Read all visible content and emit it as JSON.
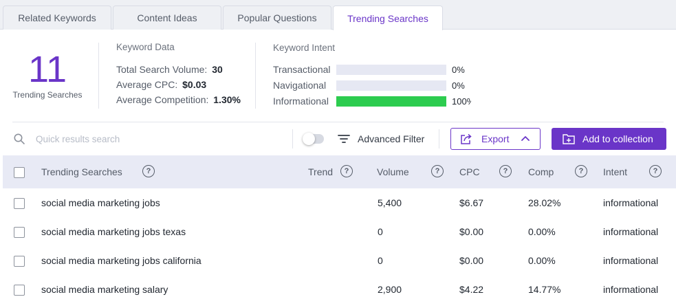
{
  "tabs": [
    {
      "label": "Related Keywords",
      "active": false
    },
    {
      "label": "Content Ideas",
      "active": false
    },
    {
      "label": "Popular Questions",
      "active": false
    },
    {
      "label": "Trending Searches",
      "active": true
    }
  ],
  "summary": {
    "count": "11",
    "count_label": "Trending Searches",
    "keyword_data": {
      "title": "Keyword Data",
      "rows": [
        {
          "label": "Total Search Volume:",
          "value": "30"
        },
        {
          "label": "Average CPC:",
          "value": "$0.03"
        },
        {
          "label": "Average Competition:",
          "value": "1.30%"
        }
      ]
    },
    "keyword_intent": {
      "title": "Keyword Intent",
      "rows": [
        {
          "label": "Transactional",
          "pct": "0%",
          "fraction": 0
        },
        {
          "label": "Navigational",
          "pct": "0%",
          "fraction": 0
        },
        {
          "label": "Informational",
          "pct": "100%",
          "fraction": 1
        }
      ]
    }
  },
  "toolbar": {
    "search_placeholder": "Quick results search",
    "advanced_filter_label": "Advanced Filter",
    "toggle_on": false,
    "export_label": "Export",
    "add_label": "Add to collection"
  },
  "table": {
    "columns": [
      "Trending Searches",
      "Trend",
      "Volume",
      "CPC",
      "Comp",
      "Intent"
    ],
    "rows": [
      {
        "keyword": "social media marketing jobs",
        "volume": "5,400",
        "cpc": "$6.67",
        "comp": "28.02%",
        "intent": "informational"
      },
      {
        "keyword": "social media marketing jobs texas",
        "volume": "0",
        "cpc": "$0.00",
        "comp": "0.00%",
        "intent": "informational"
      },
      {
        "keyword": "social media marketing jobs california",
        "volume": "0",
        "cpc": "$0.00",
        "comp": "0.00%",
        "intent": "informational"
      },
      {
        "keyword": "social media marketing salary",
        "volume": "2,900",
        "cpc": "$4.22",
        "comp": "14.77%",
        "intent": "informational"
      }
    ]
  },
  "colors": {
    "accent": "#6a35c8",
    "intent_bar_fill": "#2dcc4f",
    "intent_bar_track": "#e6e8f3",
    "header_bg": "#e8eaf5"
  }
}
